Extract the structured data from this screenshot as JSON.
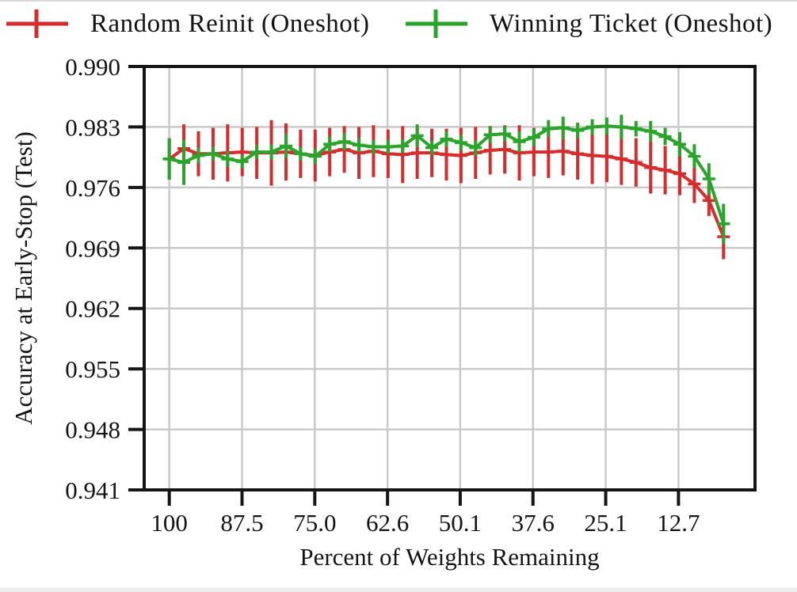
{
  "figure": {
    "legend": [
      {
        "label": "Random Reinit (Oneshot)",
        "color": "#d62c2c"
      },
      {
        "label": "Winning Ticket (Oneshot)",
        "color": "#2aa42a"
      }
    ],
    "colors": {
      "grid": "#c9c9c9",
      "spine": "#151515",
      "text": "#141414",
      "background": "#ffffff"
    }
  },
  "chart_data": {
    "type": "line",
    "subtype": "errorbar",
    "title": "",
    "xlabel": "Percent of Weights Remaining",
    "ylabel": "Accuracy at Early-Stop (Test)",
    "grid": true,
    "legend_position": "top",
    "x_axis_reversed": true,
    "xlim": [
      104.3,
      -0.4
    ],
    "ylim": [
      0.941,
      0.99
    ],
    "x_ticks": [
      {
        "value": 100.0,
        "label": "100"
      },
      {
        "value": 87.53,
        "label": "87.5"
      },
      {
        "value": 75.06,
        "label": "75.0"
      },
      {
        "value": 62.59,
        "label": "62.6"
      },
      {
        "value": 50.13,
        "label": "50.1"
      },
      {
        "value": 37.66,
        "label": "37.6"
      },
      {
        "value": 25.19,
        "label": "25.1"
      },
      {
        "value": 12.72,
        "label": "12.7"
      }
    ],
    "y_ticks": [
      {
        "value": 0.99,
        "label": "0.990"
      },
      {
        "value": 0.983,
        "label": "0.983"
      },
      {
        "value": 0.976,
        "label": "0.976"
      },
      {
        "value": 0.969,
        "label": "0.969"
      },
      {
        "value": 0.962,
        "label": "0.962"
      },
      {
        "value": 0.955,
        "label": "0.955"
      },
      {
        "value": 0.948,
        "label": "0.948"
      },
      {
        "value": 0.941,
        "label": "0.941"
      }
    ],
    "x": [
      100,
      97.5,
      95,
      92.5,
      90,
      87.5,
      85,
      82.5,
      80,
      77.5,
      75,
      72.5,
      70,
      67.5,
      65,
      62.5,
      60,
      57.5,
      55,
      52.5,
      50,
      47.5,
      45,
      42.5,
      40,
      37.5,
      35,
      32.5,
      30,
      27.5,
      25,
      22.5,
      20,
      17.5,
      15,
      12.5,
      10,
      7.5,
      5
    ],
    "series": [
      {
        "name": "Random Reinit (Oneshot)",
        "color": "#d62c2c",
        "values": [
          0.9793,
          0.9805,
          0.9799,
          0.9799,
          0.98,
          0.9801,
          0.98,
          0.98,
          0.9801,
          0.9799,
          0.9797,
          0.9801,
          0.9804,
          0.98,
          0.9802,
          0.9799,
          0.9798,
          0.98,
          0.98,
          0.9798,
          0.9797,
          0.98,
          0.9803,
          0.9804,
          0.98,
          0.9801,
          0.9801,
          0.9802,
          0.9799,
          0.9797,
          0.9796,
          0.9793,
          0.9789,
          0.9783,
          0.978,
          0.9776,
          0.9764,
          0.9745,
          0.9703
        ],
        "err": [
          0.0024,
          0.0028,
          0.0026,
          0.003,
          0.0033,
          0.0028,
          0.003,
          0.0038,
          0.0033,
          0.0028,
          0.003,
          0.0028,
          0.0027,
          0.003,
          0.003,
          0.0028,
          0.0033,
          0.003,
          0.0028,
          0.003,
          0.0032,
          0.003,
          0.0028,
          0.0028,
          0.0032,
          0.0028,
          0.003,
          0.0028,
          0.003,
          0.0033,
          0.003,
          0.003,
          0.0028,
          0.003,
          0.0028,
          0.0025,
          0.0022,
          0.0018,
          0.0026
        ]
      },
      {
        "name": "Winning Ticket (Oneshot)",
        "color": "#2aa42a",
        "values": [
          0.9793,
          0.9789,
          0.9797,
          0.9799,
          0.9793,
          0.979,
          0.9801,
          0.9801,
          0.9808,
          0.9799,
          0.9796,
          0.981,
          0.9813,
          0.9809,
          0.9807,
          0.9807,
          0.9808,
          0.982,
          0.9806,
          0.9816,
          0.9812,
          0.9806,
          0.9821,
          0.9822,
          0.9813,
          0.9818,
          0.9828,
          0.9829,
          0.9826,
          0.983,
          0.9831,
          0.983,
          0.9828,
          0.9825,
          0.9819,
          0.981,
          0.9796,
          0.977,
          0.9718
        ],
        "err": [
          0.0024,
          0.0026,
          0.0009,
          0.0008,
          0.0009,
          0.0008,
          0.0008,
          0.0009,
          0.0014,
          0.0008,
          0.0009,
          0.0009,
          0.001,
          0.0008,
          0.0008,
          0.0008,
          0.0008,
          0.0013,
          0.0008,
          0.0009,
          0.0009,
          0.0009,
          0.001,
          0.0009,
          0.0012,
          0.001,
          0.001,
          0.0013,
          0.0009,
          0.0009,
          0.001,
          0.0014,
          0.0009,
          0.0012,
          0.001,
          0.0014,
          0.0014,
          0.0018,
          0.0023
        ]
      }
    ]
  }
}
